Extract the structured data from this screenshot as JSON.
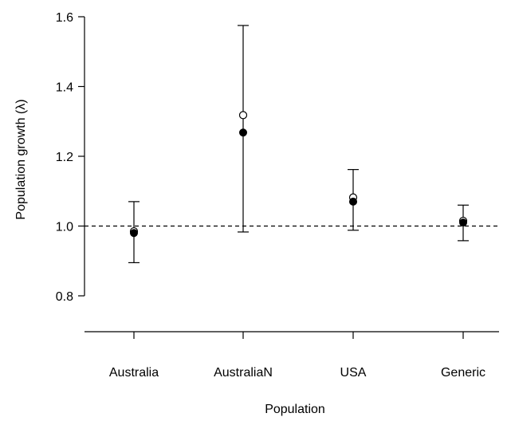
{
  "chart_data": {
    "type": "scatter",
    "title": "",
    "xlabel": "Population",
    "ylabel": "Population growth (λ)",
    "categories": [
      "Australia",
      "AustraliaN",
      "USA",
      "Generic"
    ],
    "ylim": [
      0.8,
      1.6
    ],
    "yticks": [
      "0.8",
      "1.0",
      "1.2",
      "1.4",
      "1.6"
    ],
    "reference_line": 1.0,
    "series": [
      {
        "marker": "filled-circle",
        "values": [
          0.98,
          1.268,
          1.07,
          1.01
        ]
      },
      {
        "marker": "open-circle",
        "values": [
          0.985,
          1.318,
          1.082,
          1.015
        ]
      }
    ],
    "error_bars": [
      {
        "low": 0.895,
        "high": 1.07
      },
      {
        "low": 0.983,
        "high": 1.575
      },
      {
        "low": 0.988,
        "high": 1.162
      },
      {
        "low": 0.958,
        "high": 1.06
      }
    ],
    "grid": false,
    "colors": {
      "ink": "#000000",
      "background": "#ffffff"
    }
  }
}
